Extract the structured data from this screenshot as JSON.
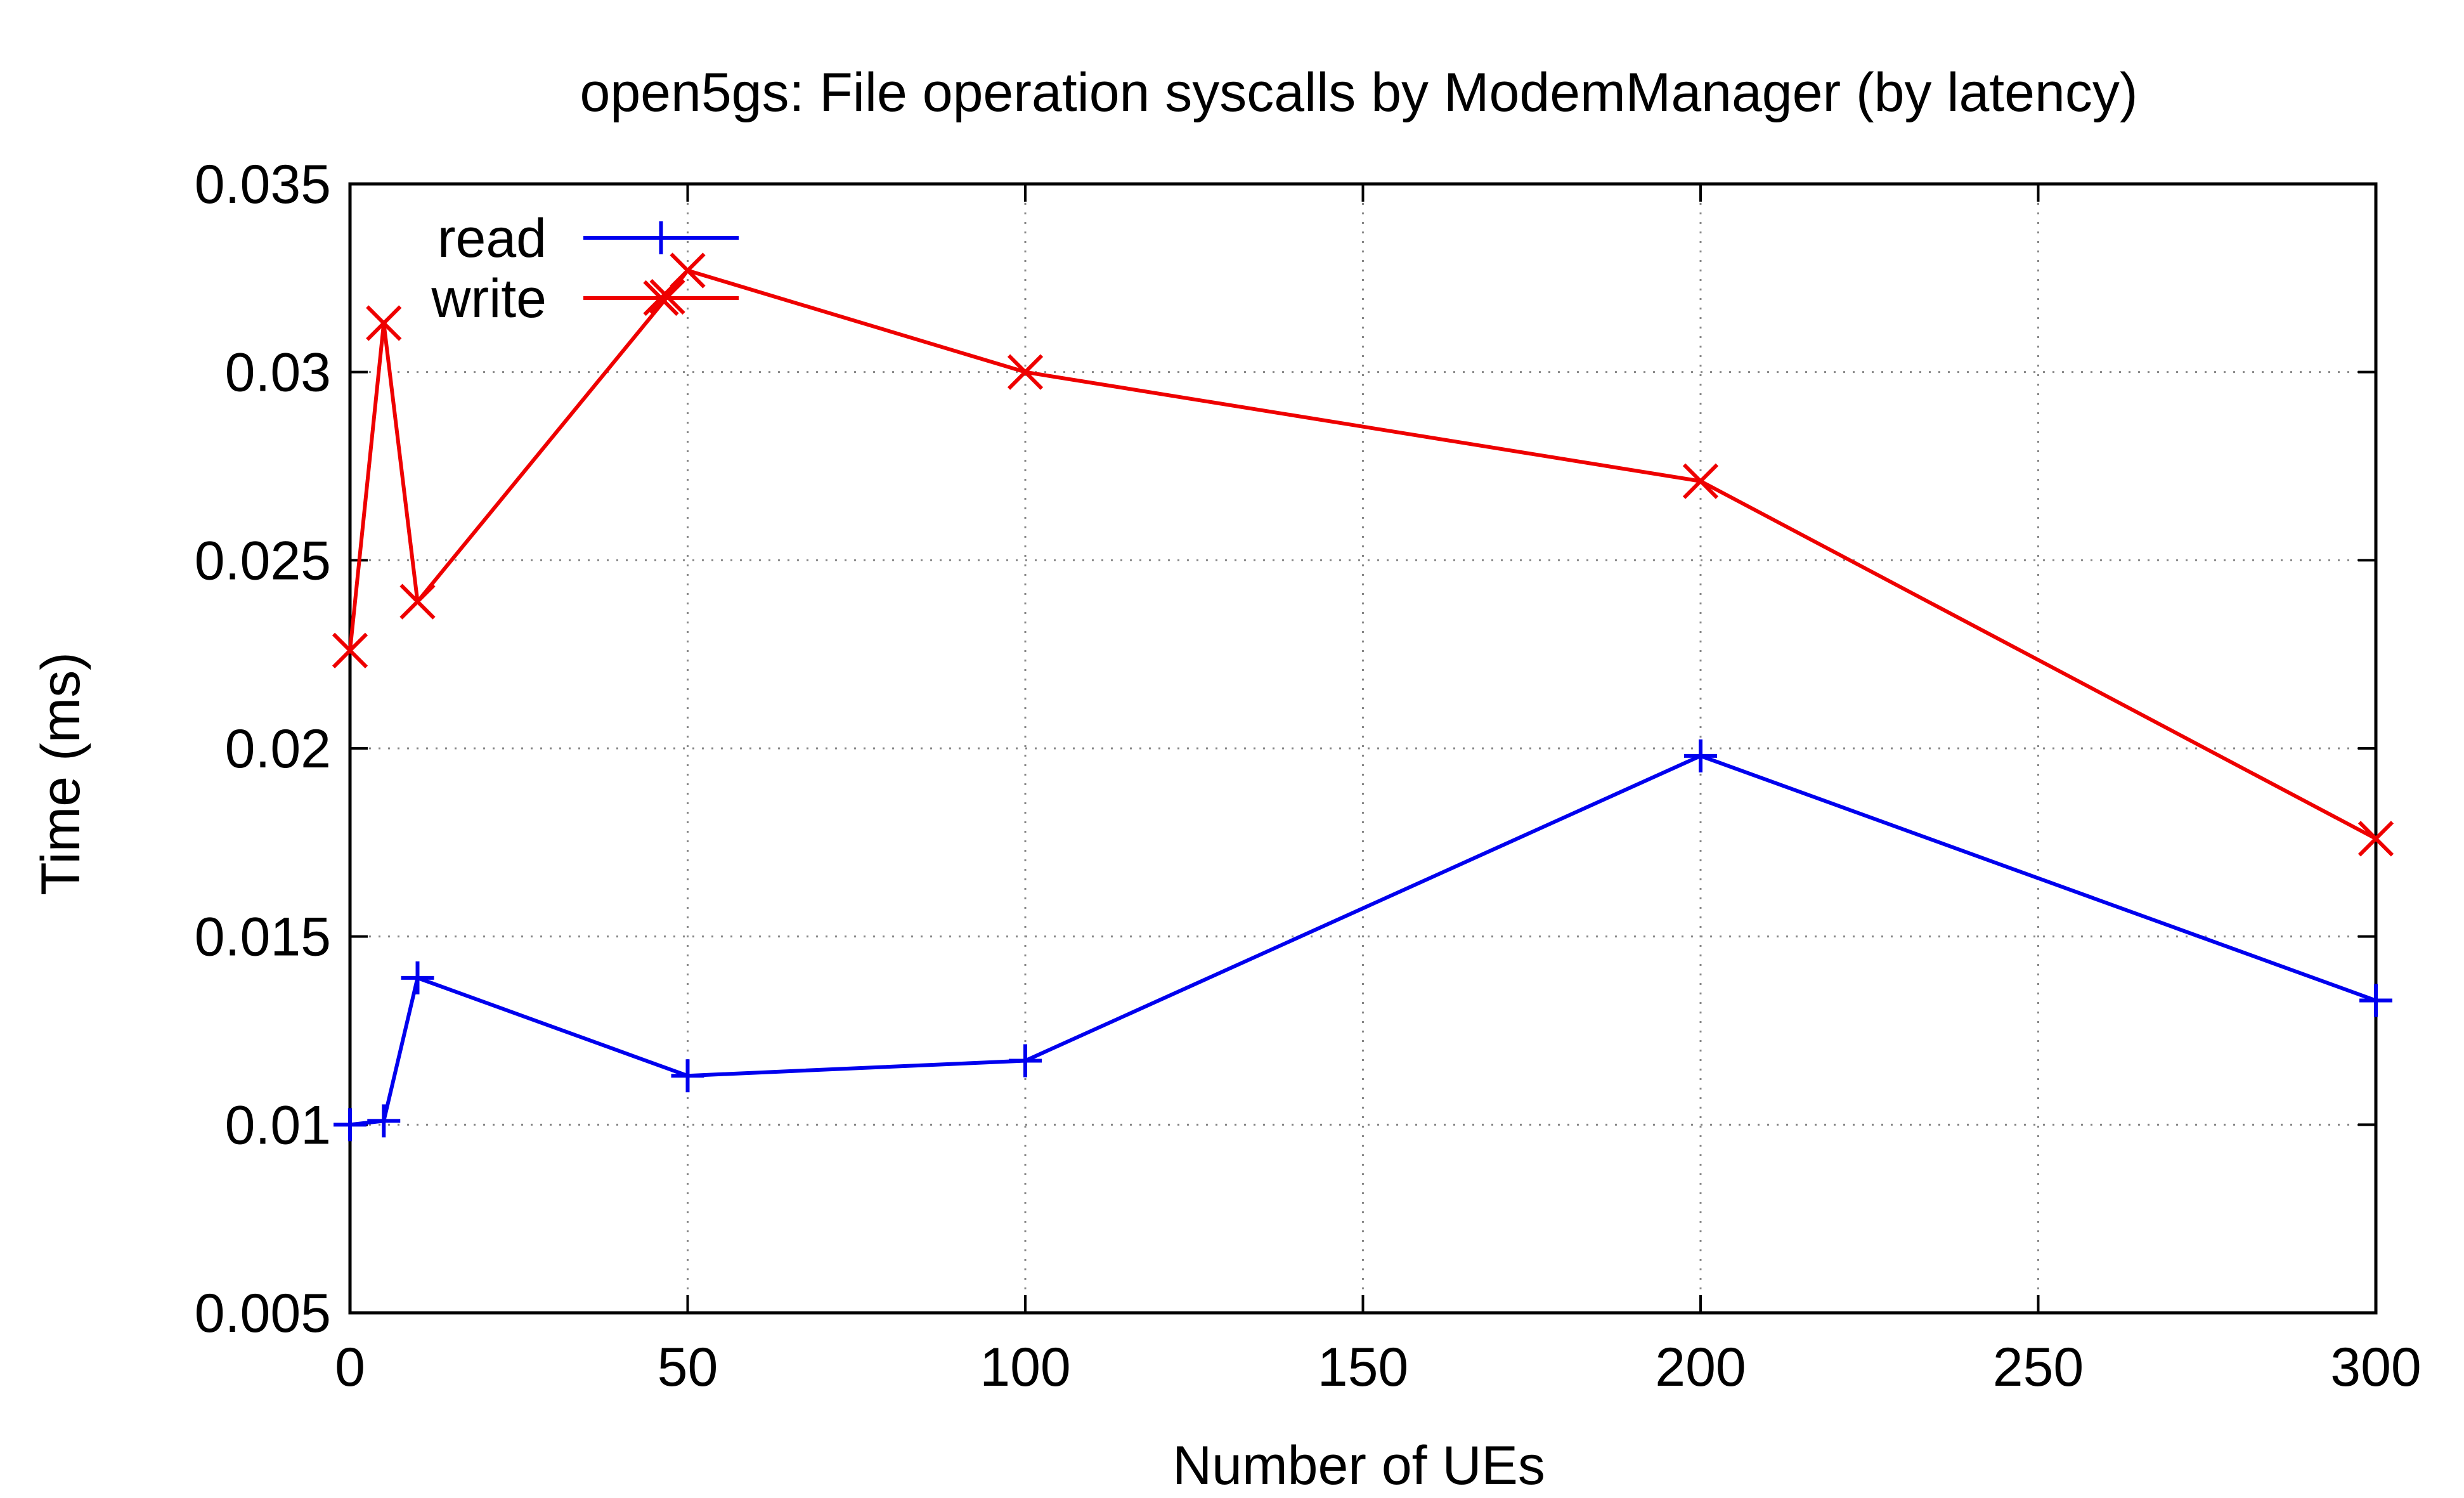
{
  "chart_data": {
    "type": "line",
    "title": "open5gs: File operation syscalls by ModemManager (by latency)",
    "xlabel": "Number of UEs",
    "ylabel": "Time (ms)",
    "xlim": [
      0,
      300
    ],
    "ylim": [
      0.005,
      0.035
    ],
    "xticks": [
      0,
      50,
      100,
      150,
      200,
      250,
      300
    ],
    "xtick_labels": [
      "0",
      "50",
      "100",
      "150",
      "200",
      "250",
      "300"
    ],
    "yticks": [
      0.005,
      0.01,
      0.015,
      0.02,
      0.025,
      0.03,
      0.035
    ],
    "ytick_labels": [
      "0.005",
      "0.01",
      "0.015",
      "0.02",
      "0.025",
      "0.03",
      "0.035"
    ],
    "grid": true,
    "legend_position": "top-left",
    "series": [
      {
        "name": "read",
        "color": "#0000ee",
        "marker": "plus",
        "x": [
          0,
          5,
          10,
          50,
          100,
          200,
          300
        ],
        "y": [
          0.01,
          0.0101,
          0.0139,
          0.0113,
          0.0117,
          0.0198,
          0.0133
        ]
      },
      {
        "name": "write",
        "color": "#ee0000",
        "marker": "cross",
        "x": [
          0,
          5,
          10,
          47,
          50,
          100,
          200,
          300
        ],
        "y": [
          0.0226,
          0.0313,
          0.0239,
          0.032,
          0.0327,
          0.03,
          0.0271,
          0.0176
        ]
      }
    ]
  }
}
